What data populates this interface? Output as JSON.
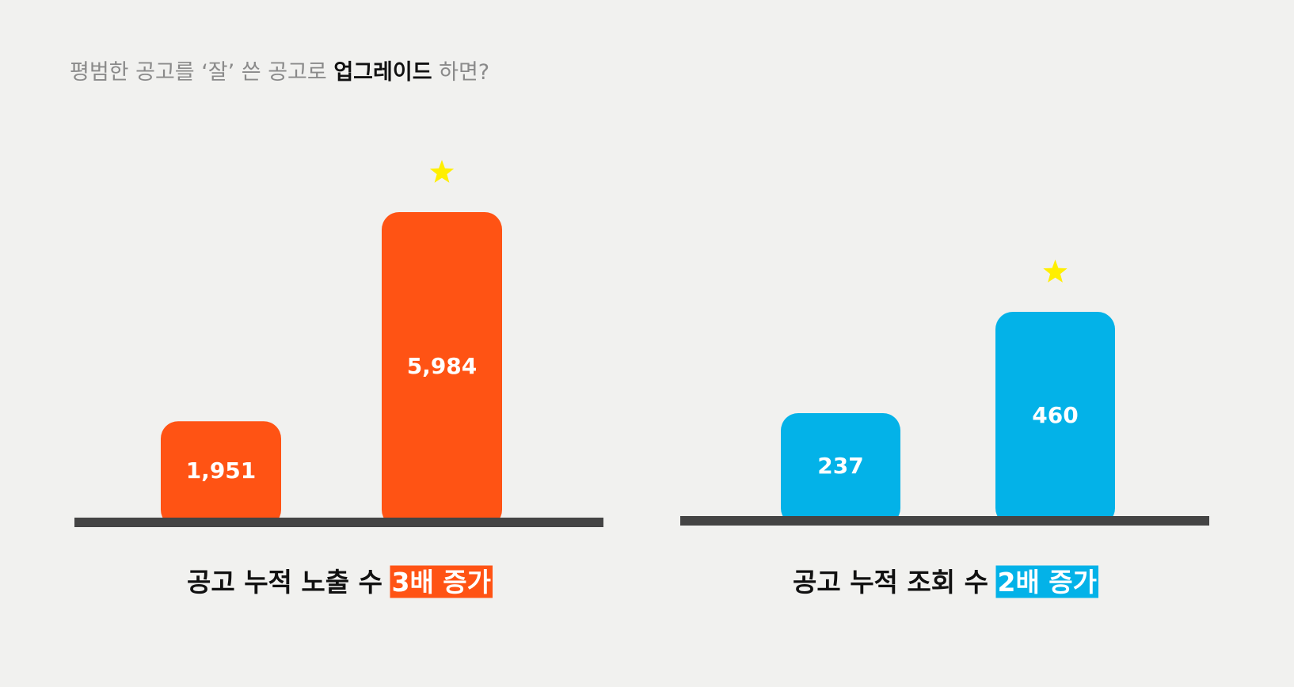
{
  "headline": [
    "평범한 공고를 ‘잘’ 쓴 공고로 ",
    "업그레이드",
    " 하면?"
  ],
  "chart_data": [
    {
      "type": "bar",
      "categories": [
        null,
        null
      ],
      "values": [
        1951,
        5984
      ],
      "value_labels": [
        "1,951",
        "5,984"
      ],
      "color": "#ff5314",
      "caption": "공고 누적 노출 수",
      "highlight": "3배 증가"
    },
    {
      "type": "bar",
      "categories": [
        null,
        null
      ],
      "values": [
        237,
        460
      ],
      "value_labels": [
        "237",
        "460"
      ],
      "color": "#03b2e8",
      "caption": "공고 누적 조회 수",
      "highlight": "2배 증가"
    }
  ]
}
